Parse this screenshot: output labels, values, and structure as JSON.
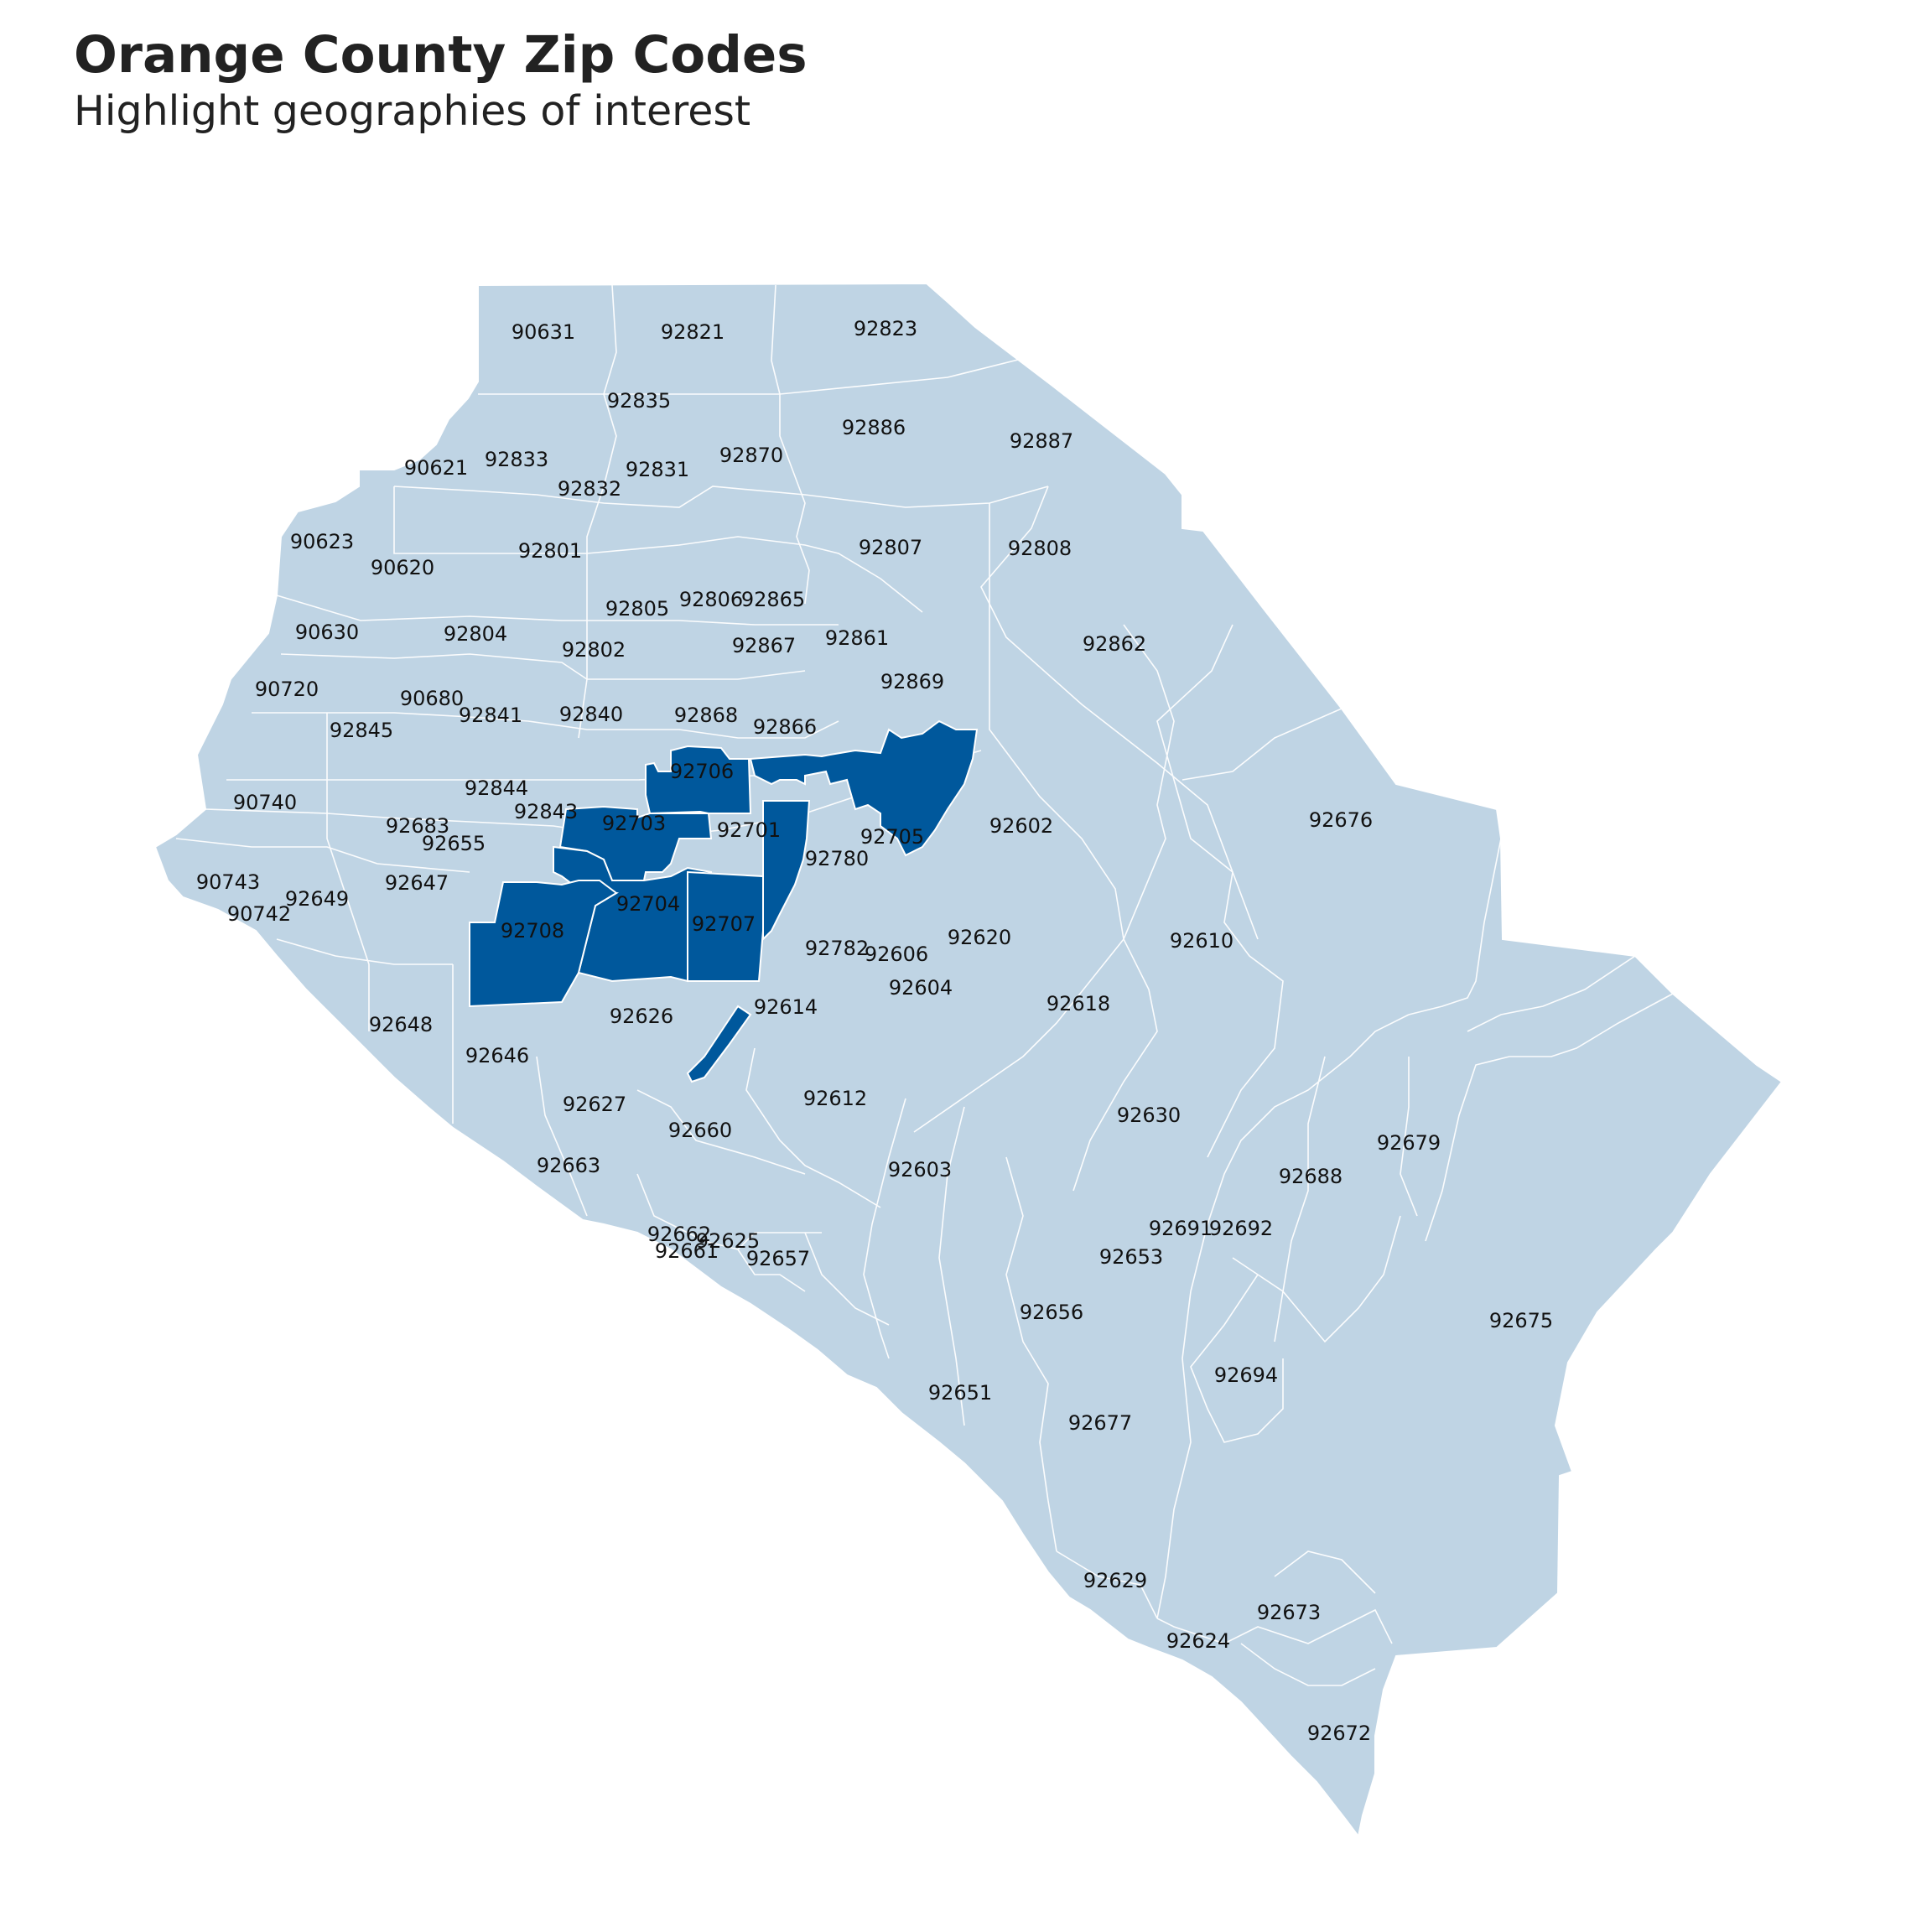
{
  "title": "Orange County Zip Codes",
  "subtitle": "Highlight geographies of interest",
  "colors": {
    "base_fill": "#bfd4e4",
    "highlight_fill": "#00589c",
    "border": "#ffffff",
    "label": "#111111"
  },
  "highlighted": [
    "92706",
    "92705",
    "92703",
    "92704",
    "92707",
    "92708",
    "92614"
  ],
  "zip_labels": [
    "90631",
    "92821",
    "92823",
    "92835",
    "92886",
    "92887",
    "90621",
    "92833",
    "92831",
    "92870",
    "92832",
    "90623",
    "92801",
    "92807",
    "92808",
    "90620",
    "92805",
    "92806",
    "92865",
    "90630",
    "92804",
    "92861",
    "92862",
    "92802",
    "92867",
    "92869",
    "90720",
    "90680",
    "92841",
    "92840",
    "92868",
    "92845",
    "92866",
    "92706",
    "92844",
    "92843",
    "92676",
    "90740",
    "92683",
    "92703",
    "92701",
    "92705",
    "92602",
    "92655",
    "92780",
    "90743",
    "92649",
    "92647",
    "92704",
    "90742",
    "92708",
    "92707",
    "92620",
    "92610",
    "92782",
    "92606",
    "92604",
    "92618",
    "92614",
    "92648",
    "92626",
    "92646",
    "92612",
    "92630",
    "92627",
    "92660",
    "92679",
    "92663",
    "92603",
    "92688",
    "92691",
    "92692",
    "92662",
    "92625",
    "92653",
    "92661",
    "92657",
    "92656",
    "92675",
    "92694",
    "92651",
    "92677",
    "92629",
    "92673",
    "92624",
    "92672"
  ]
}
